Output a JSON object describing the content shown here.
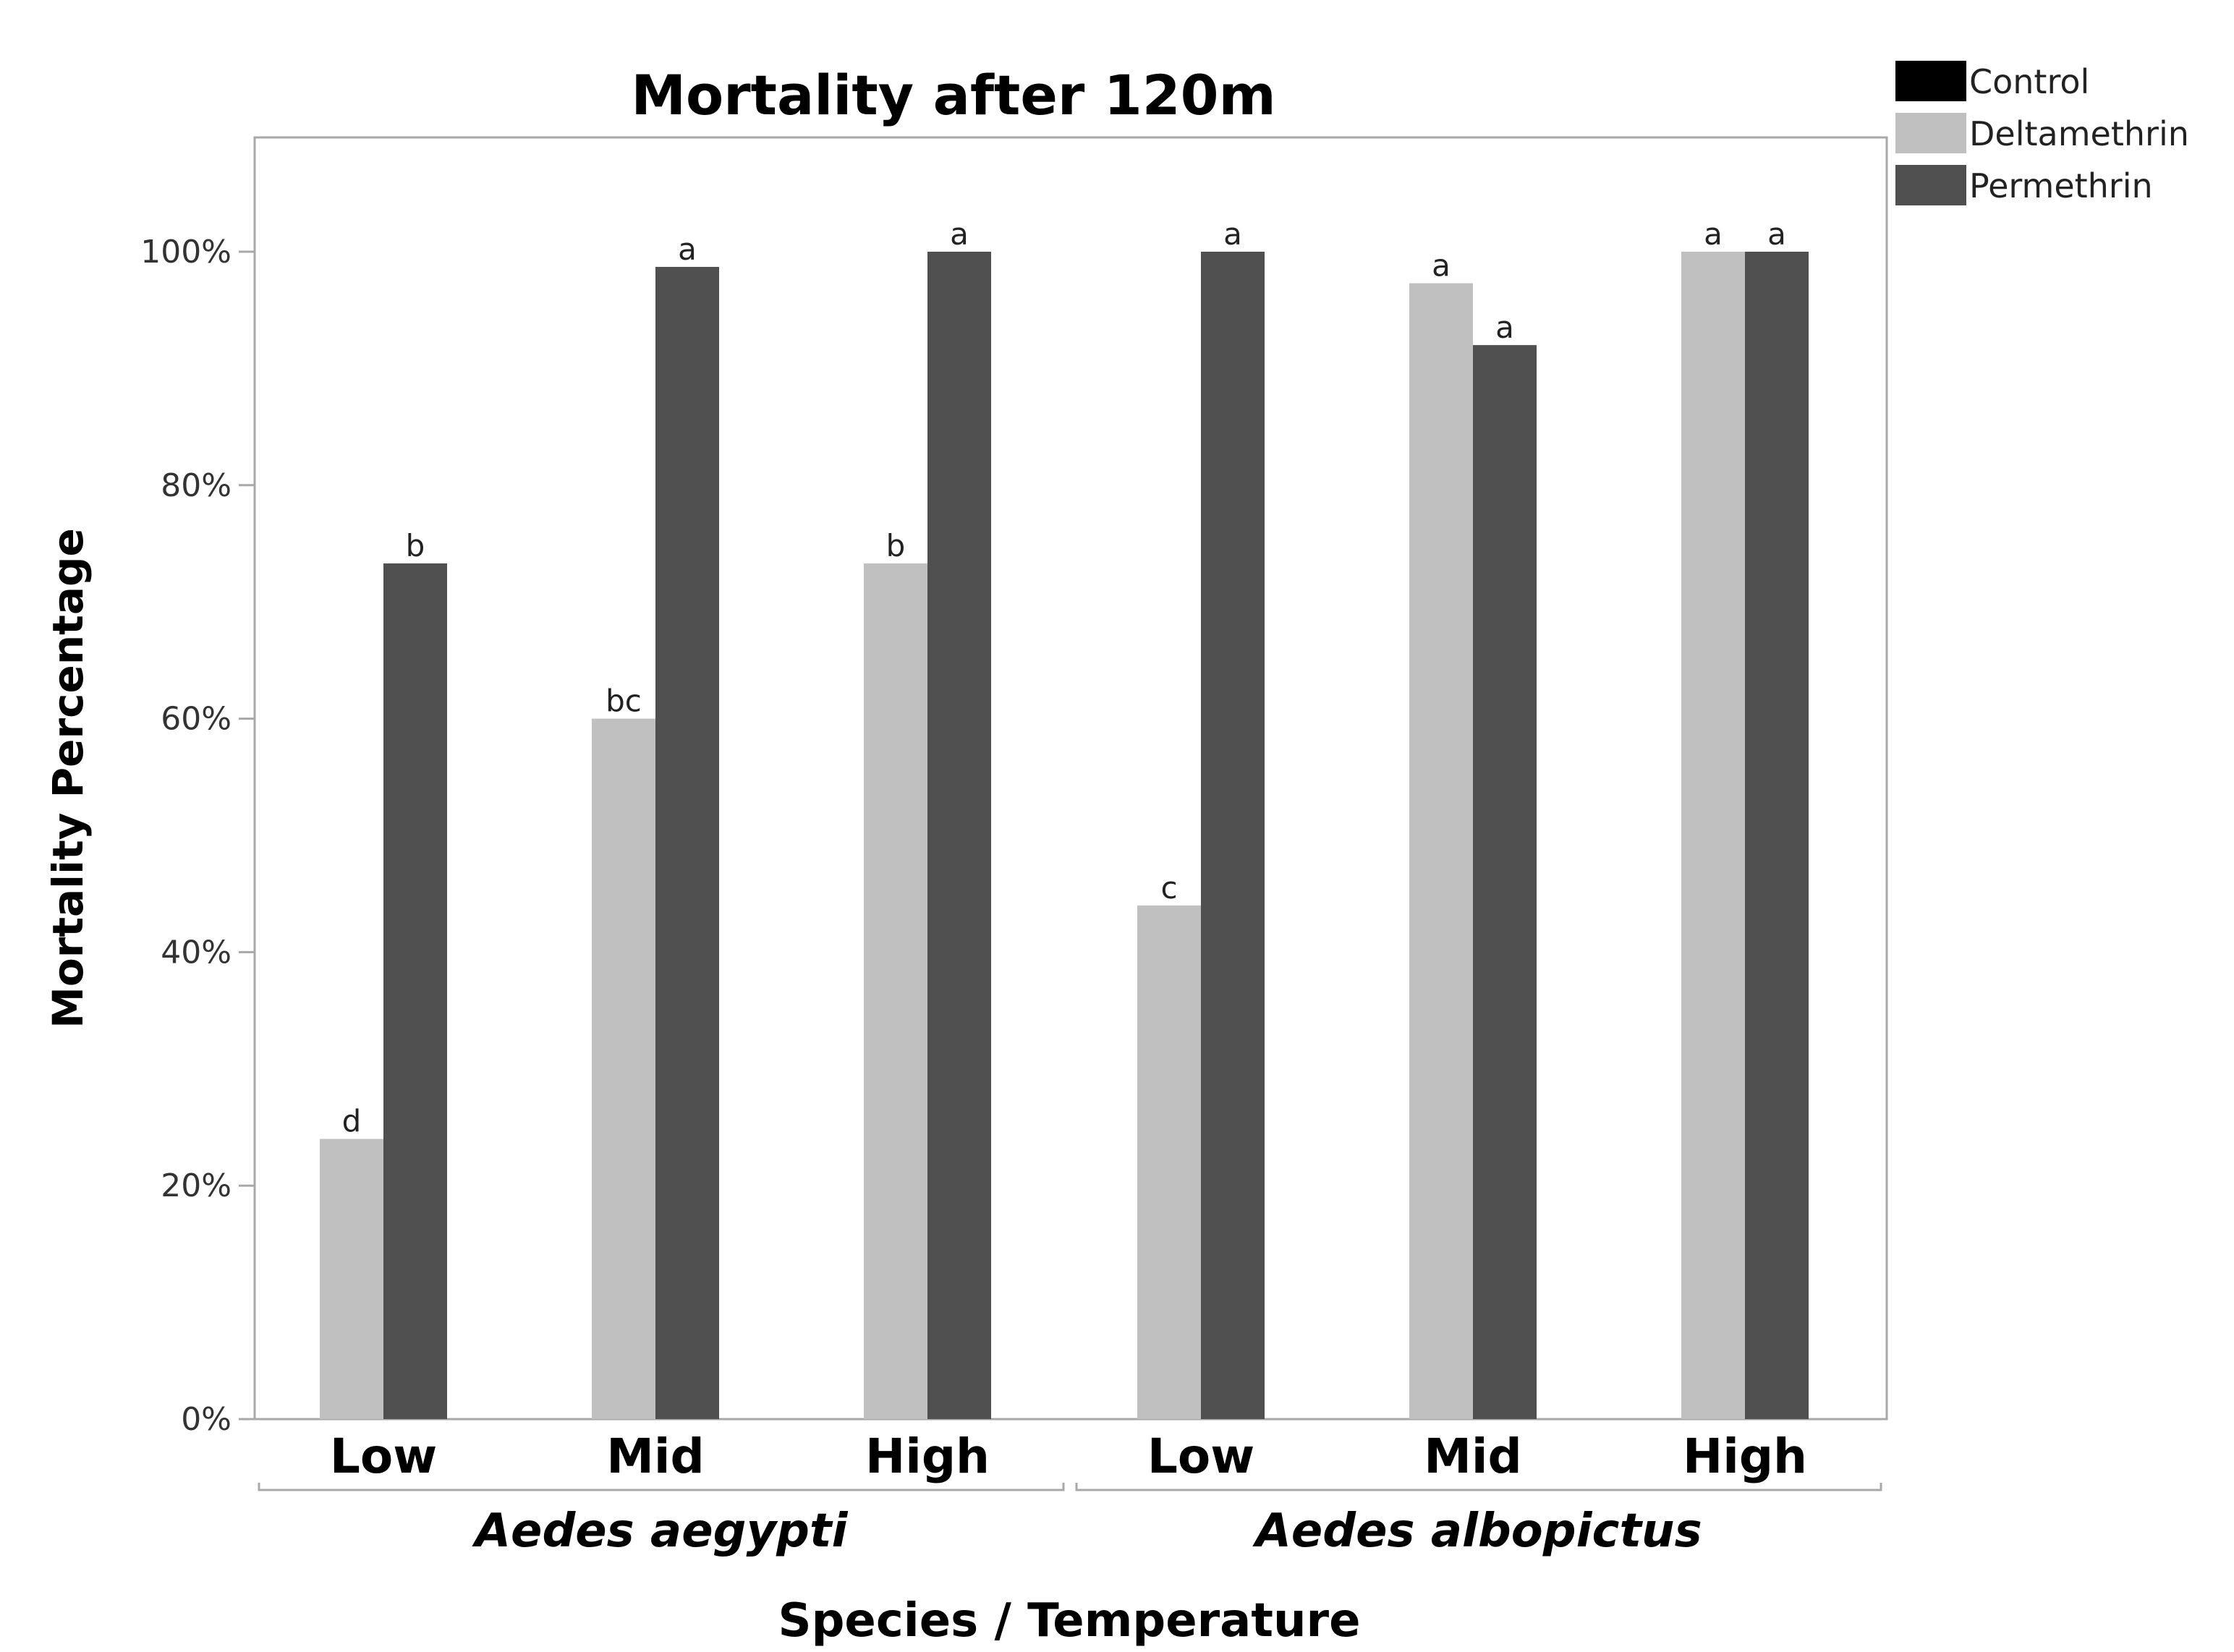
{
  "chart_data": {
    "type": "bar",
    "title": "Mortality after 120m",
    "xlabel": "Species / Temperature",
    "ylabel": "Mortality Percentage",
    "ylim": [
      0,
      110
    ],
    "yticks": [
      {
        "value": 0,
        "label": "0%"
      },
      {
        "value": 20,
        "label": "20%"
      },
      {
        "value": 40,
        "label": "40%"
      },
      {
        "value": 60,
        "label": "60%"
      },
      {
        "value": 80,
        "label": "80%"
      },
      {
        "value": 100,
        "label": "100%"
      }
    ],
    "groups": [
      {
        "name": "Aedes aegypti",
        "categories": [
          "Low",
          "Mid",
          "High"
        ]
      },
      {
        "name": "Aedes albopictus",
        "categories": [
          "Low",
          "Mid",
          "High"
        ]
      }
    ],
    "series": [
      {
        "name": "Control",
        "color": "#000000",
        "values": [
          0,
          0,
          0,
          0,
          0,
          0
        ],
        "labels": [
          "",
          "",
          "",
          "",
          "",
          ""
        ]
      },
      {
        "name": "Deltamethrin",
        "color": "#c0c0c0",
        "values": [
          24,
          60,
          73.3,
          44,
          97.3,
          100
        ],
        "labels": [
          "d",
          "bc",
          "b",
          "c",
          "a",
          "a"
        ]
      },
      {
        "name": "Permethrin",
        "color": "#505050",
        "values": [
          73.3,
          98.7,
          100,
          100,
          92,
          100
        ],
        "labels": [
          "b",
          "a",
          "a",
          "a",
          "a",
          "a"
        ]
      }
    ],
    "legend": "top-right",
    "grid": false
  }
}
